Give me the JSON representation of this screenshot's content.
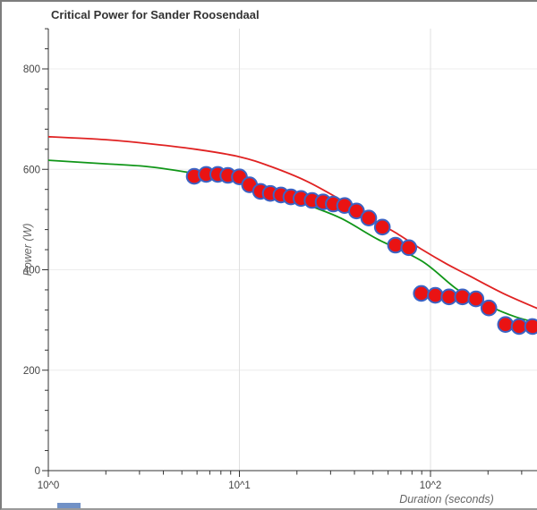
{
  "window": {
    "border_color": "#7d7d7d",
    "background": "#ffffff"
  },
  "chart_data": {
    "type": "scatter",
    "title": "Critical Power for Sander Roosendaal",
    "xlabel": "Duration (seconds)",
    "ylabel": "Power (W)",
    "x_scale": "log",
    "xlim": [
      1,
      373
    ],
    "ylim": [
      0,
      880
    ],
    "grid": true,
    "legend_position": "none",
    "x_ticks": [
      {
        "label": "10^0",
        "value": 1
      },
      {
        "label": "10^1",
        "value": 10
      },
      {
        "label": "10^2",
        "value": 100
      }
    ],
    "x_minor_ticks": [
      2,
      3,
      4,
      5,
      6,
      7,
      8,
      9,
      20,
      30,
      40,
      50,
      60,
      70,
      80,
      90,
      200,
      300
    ],
    "y_ticks": [
      0,
      200,
      400,
      600,
      800
    ],
    "y_minor_tick_step": 40,
    "colors": {
      "point_fill": "#ea1313",
      "point_stroke": "#3b63c4",
      "curve_red": "#e02222",
      "curve_green": "#109618",
      "gridline_h": "#ececec",
      "gridline_v": "#e0e0e0",
      "axis_line": "#333333",
      "tick_label": "#444444",
      "title": "#333333",
      "axis_title": "#666666"
    },
    "series": [
      {
        "name": "measured-power-points",
        "type": "points",
        "data": [
          [
            5.8,
            586
          ],
          [
            6.7,
            590
          ],
          [
            7.7,
            590
          ],
          [
            8.7,
            588
          ],
          [
            10,
            585
          ],
          [
            11.3,
            569
          ],
          [
            12.9,
            556
          ],
          [
            14.5,
            552
          ],
          [
            16.5,
            549
          ],
          [
            18.6,
            545
          ],
          [
            21,
            542
          ],
          [
            24,
            538
          ],
          [
            27.4,
            535
          ],
          [
            31,
            531
          ],
          [
            35.5,
            528
          ],
          [
            41,
            517
          ],
          [
            47.5,
            503
          ],
          [
            56,
            485
          ],
          [
            65.6,
            449
          ],
          [
            77,
            444
          ],
          [
            89.5,
            353
          ],
          [
            106,
            349
          ],
          [
            125,
            346
          ],
          [
            147,
            346
          ],
          [
            173,
            342
          ],
          [
            202,
            324
          ],
          [
            247,
            291
          ],
          [
            291,
            287
          ],
          [
            342,
            287
          ]
        ]
      },
      {
        "name": "model-fit-red",
        "type": "curve",
        "color_key": "curve_red",
        "data": [
          [
            1,
            665
          ],
          [
            2,
            659
          ],
          [
            3.2,
            652
          ],
          [
            5.9,
            640
          ],
          [
            10,
            625
          ],
          [
            14.5,
            606
          ],
          [
            22.3,
            577
          ],
          [
            34.3,
            538
          ],
          [
            52.8,
            494
          ],
          [
            65.6,
            474
          ],
          [
            90.5,
            440
          ],
          [
            121,
            412
          ],
          [
            156,
            390
          ],
          [
            240,
            353
          ],
          [
            368,
            322
          ]
        ]
      },
      {
        "name": "model-fit-green",
        "type": "curve",
        "color_key": "curve_green",
        "data": [
          [
            1,
            618
          ],
          [
            2,
            611
          ],
          [
            3.2,
            606
          ],
          [
            5.2,
            595
          ],
          [
            10,
            577
          ],
          [
            14.5,
            556
          ],
          [
            23.5,
            527
          ],
          [
            34.3,
            502
          ],
          [
            52.8,
            461
          ],
          [
            90.5,
            417
          ],
          [
            139,
            360
          ],
          [
            202,
            328
          ],
          [
            280,
            306
          ],
          [
            368,
            294
          ]
        ]
      }
    ]
  }
}
